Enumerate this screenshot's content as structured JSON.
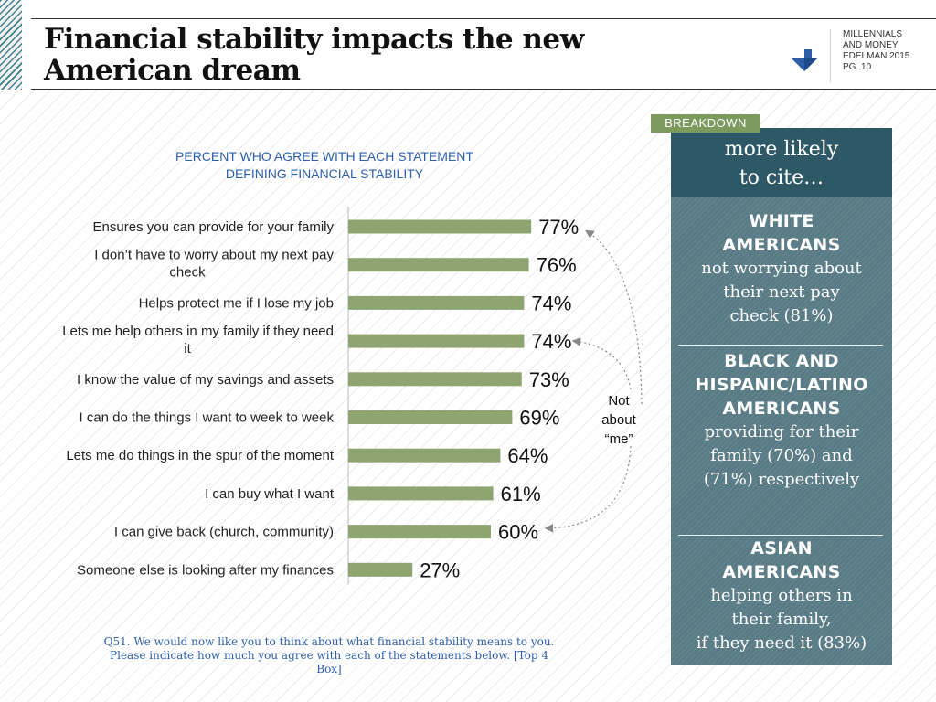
{
  "header": {
    "title_lines": [
      "Financial stability impacts the new",
      "American dream"
    ],
    "brand_lines": [
      "MILLENNIALS",
      "AND MONEY",
      "EDELMAN 2015",
      "PG. 10"
    ],
    "logo_color": "#2d5fa8"
  },
  "chart_subtitle_lines": [
    "PERCENT WHO AGREE WITH EACH STATEMENT",
    "DEFINING FINANCIAL STABILITY"
  ],
  "chart_data": {
    "type": "bar",
    "orientation": "horizontal",
    "categories": [
      [
        "Ensures you can provide for your family"
      ],
      [
        "I don’t have to worry about my next pay",
        "check"
      ],
      [
        "Helps protect me if I lose my job"
      ],
      [
        "Lets me help others in my family if they need",
        "it"
      ],
      [
        "I know the value of my savings and assets"
      ],
      [
        "I can do the things I want to week to week"
      ],
      [
        "Lets me do things in the spur of the moment"
      ],
      [
        "I can buy what I want"
      ],
      [
        "I can give back (church, community)"
      ],
      [
        "Someone else is looking after my finances"
      ]
    ],
    "values": [
      77,
      76,
      74,
      74,
      73,
      69,
      64,
      61,
      60,
      27
    ],
    "value_labels": [
      "77%",
      "76%",
      "74%",
      "74%",
      "73%",
      "69%",
      "64%",
      "61%",
      "60%",
      "27%"
    ],
    "xlim": [
      0,
      100
    ],
    "bar_color": "#8fa571",
    "grid": false,
    "annotation": {
      "text_lines": [
        "Not",
        "about",
        "“me”"
      ],
      "points_to_categories": [
        0,
        3,
        8
      ]
    }
  },
  "footnote_lines": [
    "Q51. We would now like you to think about what financial stability means to you.",
    "Please indicate how much you agree with each of the statements below. [Top 4 Box]"
  ],
  "breakdown": {
    "tag": "BREAKDOWN",
    "heading_lines": [
      "more likely",
      "to cite…"
    ],
    "heading_color": "#2f5866",
    "panel_color": "#597b85",
    "tag_color": "#7c9a5e",
    "cards": [
      {
        "group_lines": [
          "WHITE",
          "AMERICANS"
        ],
        "text_lines": [
          "not worrying about",
          "their next pay",
          "check (81%)"
        ]
      },
      {
        "group_lines": [
          "BLACK AND",
          "HISPANIC/LATINO",
          "AMERICANS"
        ],
        "text_lines": [
          "providing for their",
          "family (70%) and",
          "(71%) respectively"
        ]
      },
      {
        "group_lines": [
          "ASIAN",
          "AMERICANS"
        ],
        "text_lines": [
          "helping others in",
          "their family,",
          "if they need it (83%)"
        ]
      }
    ]
  }
}
